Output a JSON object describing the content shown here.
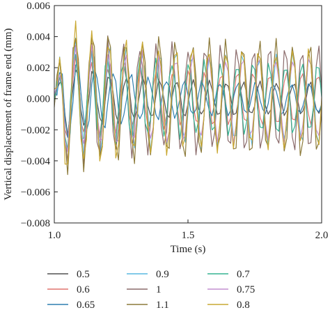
{
  "chart_data": {
    "type": "line",
    "title": "",
    "xlabel": "Time (s)",
    "ylabel": "Vertical displacement of frame end (mm)",
    "xlim": [
      1.0,
      2.0
    ],
    "ylim": [
      -0.008,
      0.006
    ],
    "x_ticks": [
      1.0,
      1.5,
      2.0
    ],
    "x_tick_labels": [
      "1.0",
      "1.5",
      "2.0"
    ],
    "y_ticks": [
      0.006,
      0.004,
      0.002,
      0.0,
      -0.002,
      -0.004,
      -0.006,
      -0.008
    ],
    "y_tick_labels": [
      "0.006",
      "0.004",
      "0.002",
      "0.000",
      "−0.002",
      "−0.004",
      "−0.006",
      "−0.008"
    ],
    "grid": false,
    "legend_position": "bottom",
    "series": [
      {
        "name": "0.5",
        "color": "#505050",
        "peak_amplitude": 0.0024,
        "late_amplitude": 0.001,
        "frequency_hz": 16.0
      },
      {
        "name": "0.6",
        "color": "#e0736f",
        "peak_amplitude": 0.0029,
        "late_amplitude": 0.0016,
        "frequency_hz": 16.5
      },
      {
        "name": "0.65",
        "color": "#2f7fb0",
        "peak_amplitude": 0.0031,
        "late_amplitude": 0.0009,
        "frequency_hz": 15.0
      },
      {
        "name": "0.9",
        "color": "#58b8e0",
        "peak_amplitude": 0.0041,
        "late_amplitude": 0.0028,
        "frequency_hz": 16.0
      },
      {
        "name": "1",
        "color": "#8a6a6a",
        "peak_amplitude": 0.0043,
        "late_amplitude": 0.0032,
        "frequency_hz": 16.5
      },
      {
        "name": "1.1",
        "color": "#8c7a3a",
        "peak_amplitude": 0.0048,
        "late_amplitude": 0.0035,
        "frequency_hz": 16.0
      },
      {
        "name": "0.7",
        "color": "#35b392",
        "peak_amplitude": 0.0034,
        "late_amplitude": 0.0022,
        "frequency_hz": 16.5
      },
      {
        "name": "0.75",
        "color": "#c48fd0",
        "peak_amplitude": 0.0036,
        "late_amplitude": 0.0026,
        "frequency_hz": 16.0
      },
      {
        "name": "0.8",
        "color": "#c9a832",
        "peak_amplitude": 0.0052,
        "late_amplitude": 0.003,
        "frequency_hz": 16.0
      }
    ]
  }
}
